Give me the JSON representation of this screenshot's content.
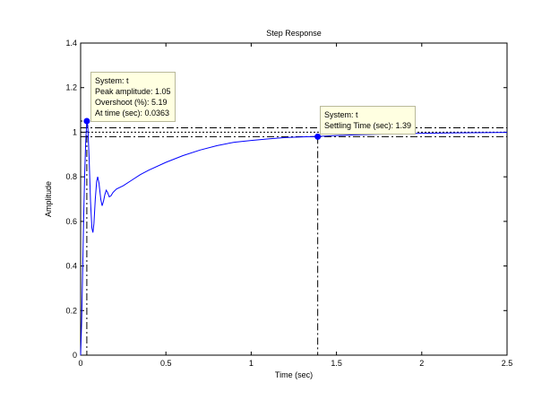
{
  "chart_data": {
    "type": "line",
    "title": "Step Response",
    "xlabel": "Time (sec)",
    "ylabel": "Amplitude",
    "xlim": [
      0,
      2.5
    ],
    "ylim": [
      0,
      1.4
    ],
    "xticks": [
      "0",
      "0.5",
      "1",
      "1.5",
      "2",
      "2.5"
    ],
    "yticks": [
      "0",
      "0.2",
      "0.4",
      "0.6",
      "0.8",
      "1",
      "1.2",
      "1.4"
    ],
    "grid": false,
    "series": [
      {
        "name": "t",
        "color": "#0000ff",
        "points": [
          [
            0,
            0
          ],
          [
            0.006,
            0.15
          ],
          [
            0.012,
            0.38
          ],
          [
            0.018,
            0.62
          ],
          [
            0.024,
            0.82
          ],
          [
            0.03,
            0.96
          ],
          [
            0.0363,
            1.05
          ],
          [
            0.042,
            1.03
          ],
          [
            0.05,
            0.88
          ],
          [
            0.058,
            0.69
          ],
          [
            0.066,
            0.57
          ],
          [
            0.072,
            0.55
          ],
          [
            0.078,
            0.59
          ],
          [
            0.086,
            0.7
          ],
          [
            0.094,
            0.78
          ],
          [
            0.1,
            0.8
          ],
          [
            0.108,
            0.77
          ],
          [
            0.118,
            0.7
          ],
          [
            0.126,
            0.67
          ],
          [
            0.134,
            0.69
          ],
          [
            0.142,
            0.72
          ],
          [
            0.15,
            0.74
          ],
          [
            0.158,
            0.73
          ],
          [
            0.168,
            0.71
          ],
          [
            0.178,
            0.715
          ],
          [
            0.19,
            0.73
          ],
          [
            0.21,
            0.745
          ],
          [
            0.25,
            0.76
          ],
          [
            0.3,
            0.785
          ],
          [
            0.35,
            0.81
          ],
          [
            0.4,
            0.83
          ],
          [
            0.5,
            0.865
          ],
          [
            0.6,
            0.895
          ],
          [
            0.7,
            0.92
          ],
          [
            0.8,
            0.94
          ],
          [
            0.9,
            0.955
          ],
          [
            1.0,
            0.963
          ],
          [
            1.1,
            0.97
          ],
          [
            1.2,
            0.976
          ],
          [
            1.3,
            0.979
          ],
          [
            1.39,
            0.981
          ],
          [
            1.5,
            0.985
          ],
          [
            1.6,
            0.988
          ],
          [
            1.8,
            0.992
          ],
          [
            2.0,
            0.995
          ],
          [
            2.2,
            0.997
          ],
          [
            2.5,
            0.999
          ]
        ]
      }
    ],
    "reference_lines": {
      "steady_state": 1.0,
      "settling_band": [
        0.98,
        1.02
      ]
    },
    "markers": [
      {
        "x": 0.0363,
        "y": 1.05
      },
      {
        "x": 1.39,
        "y": 0.98
      }
    ],
    "annotations": [
      {
        "lines": [
          "System: t",
          "Peak amplitude: 1.05",
          "Overshoot (%): 5.19",
          "At time (sec): 0.0363"
        ]
      },
      {
        "lines": [
          "System: t",
          "Settling Time (sec): 1.39"
        ]
      }
    ]
  }
}
